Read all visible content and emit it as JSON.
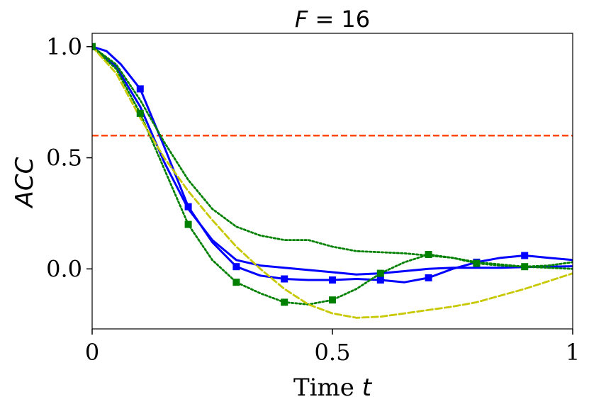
{
  "chart_data": {
    "type": "line",
    "title_var": "F",
    "title_rest": " = 16",
    "xlabel_text": "Time ",
    "xlabel_var": "t",
    "ylabel": "ACC",
    "xlim": [
      0,
      1
    ],
    "ylim": [
      -0.27,
      1.06
    ],
    "xticks": [
      0,
      0.5,
      1
    ],
    "xtick_labels": [
      "0",
      "0.5",
      "1"
    ],
    "yticks": [
      0.0,
      0.5,
      1.0
    ],
    "ytick_labels": [
      "0.0",
      "0.5",
      "1.0"
    ],
    "threshold": {
      "y": 0.6,
      "color": "#ff4500"
    },
    "series": [
      {
        "name": "blue-solid-markers",
        "color": "#0000ff",
        "style": "solid",
        "marker": "square",
        "x": [
          0,
          0.03,
          0.06,
          0.1,
          0.15,
          0.2,
          0.25,
          0.3,
          0.35,
          0.4,
          0.45,
          0.5,
          0.55,
          0.6,
          0.65,
          0.7,
          0.75,
          0.8,
          0.85,
          0.9,
          0.95,
          1.0
        ],
        "y": [
          1.0,
          0.98,
          0.92,
          0.81,
          0.55,
          0.28,
          0.12,
          0.01,
          -0.03,
          -0.045,
          -0.05,
          -0.05,
          -0.045,
          -0.05,
          -0.06,
          -0.04,
          0.0,
          0.03,
          0.05,
          0.06,
          0.05,
          0.04
        ],
        "marker_x": [
          0,
          0.1,
          0.2,
          0.3,
          0.4,
          0.5,
          0.6,
          0.7,
          0.8,
          0.9
        ],
        "marker_y": [
          1.0,
          0.81,
          0.28,
          0.01,
          -0.045,
          -0.05,
          -0.05,
          -0.04,
          0.03,
          0.06
        ]
      },
      {
        "name": "blue-solid-thick",
        "color": "#0000ff",
        "style": "solid",
        "marker": "none",
        "x": [
          0,
          0.05,
          0.1,
          0.15,
          0.2,
          0.25,
          0.3,
          0.35,
          0.4,
          0.45,
          0.5,
          0.55,
          0.6,
          0.65,
          0.7,
          0.75,
          0.8,
          0.85,
          0.9,
          0.95,
          1.0
        ],
        "y": [
          1.0,
          0.91,
          0.73,
          0.48,
          0.27,
          0.13,
          0.04,
          0.015,
          0.005,
          -0.005,
          -0.015,
          -0.025,
          -0.02,
          -0.01,
          0.0,
          0.005,
          0.005,
          0.005,
          0.008,
          0.01,
          0.012
        ]
      },
      {
        "name": "green-dotted-markers",
        "color": "#008000",
        "style": "dotted",
        "marker": "square",
        "x": [
          0,
          0.05,
          0.1,
          0.15,
          0.2,
          0.25,
          0.3,
          0.35,
          0.4,
          0.45,
          0.5,
          0.55,
          0.6,
          0.65,
          0.7,
          0.75,
          0.8,
          0.85,
          0.9,
          0.95,
          1.0
        ],
        "y": [
          1.0,
          0.9,
          0.7,
          0.45,
          0.2,
          0.04,
          -0.06,
          -0.11,
          -0.15,
          -0.16,
          -0.14,
          -0.09,
          -0.02,
          0.03,
          0.065,
          0.05,
          0.025,
          0.015,
          0.01,
          0.015,
          0.03
        ],
        "marker_x": [
          0,
          0.1,
          0.2,
          0.3,
          0.4,
          0.5,
          0.6,
          0.7,
          0.8,
          0.9
        ],
        "marker_y": [
          1.0,
          0.7,
          0.2,
          -0.06,
          -0.15,
          -0.14,
          -0.02,
          0.065,
          0.025,
          0.01
        ]
      },
      {
        "name": "green-dotted-upper",
        "color": "#008000",
        "style": "dotted",
        "marker": "none",
        "x": [
          0,
          0.05,
          0.1,
          0.15,
          0.2,
          0.25,
          0.3,
          0.35,
          0.4,
          0.45,
          0.5,
          0.55,
          0.6,
          0.65,
          0.7,
          0.75,
          0.8,
          0.85,
          0.9,
          0.95,
          1.0
        ],
        "y": [
          1.0,
          0.92,
          0.76,
          0.57,
          0.4,
          0.27,
          0.19,
          0.15,
          0.13,
          0.13,
          0.1,
          0.08,
          0.075,
          0.07,
          0.06,
          0.05,
          0.03,
          0.02,
          0.01,
          0.005,
          0.0
        ]
      },
      {
        "name": "yellow-dashed",
        "color": "#c8c800",
        "style": "dashed",
        "marker": "none",
        "x": [
          0,
          0.05,
          0.1,
          0.15,
          0.2,
          0.25,
          0.3,
          0.35,
          0.4,
          0.45,
          0.5,
          0.55,
          0.6,
          0.65,
          0.7,
          0.75,
          0.8,
          0.85,
          0.9,
          0.95,
          1.0
        ],
        "y": [
          1.0,
          0.88,
          0.68,
          0.5,
          0.35,
          0.22,
          0.1,
          0.0,
          -0.09,
          -0.16,
          -0.2,
          -0.22,
          -0.215,
          -0.2,
          -0.185,
          -0.17,
          -0.15,
          -0.12,
          -0.09,
          -0.055,
          -0.02
        ]
      }
    ]
  }
}
